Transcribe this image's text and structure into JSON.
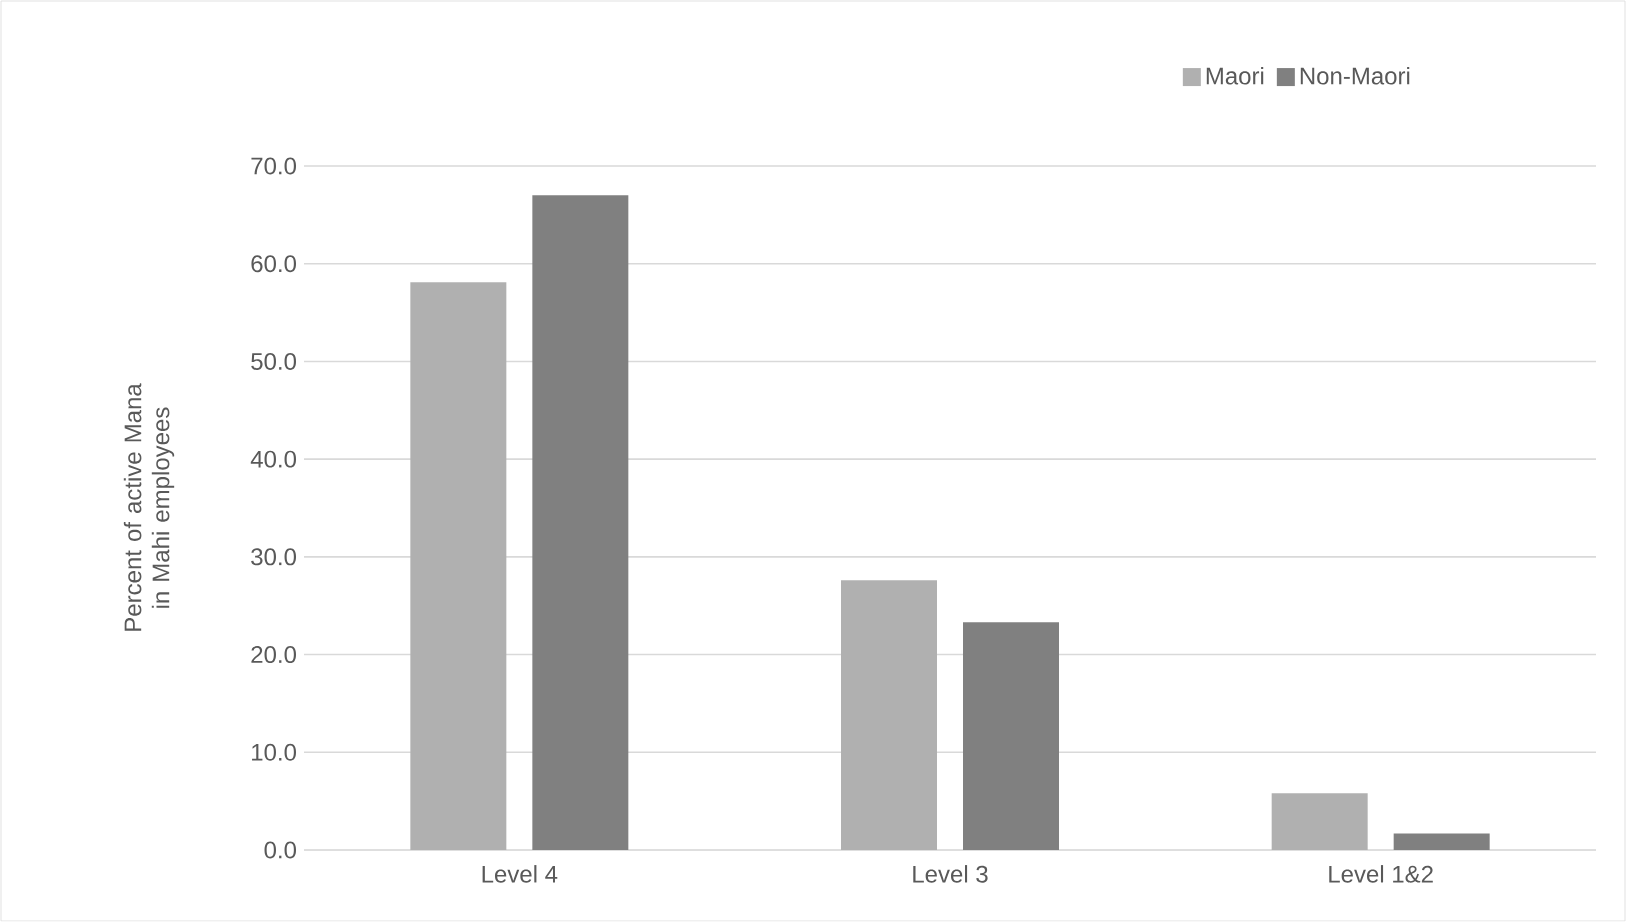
{
  "chart_data": {
    "type": "bar",
    "ylabel": "Percent of active Mana in Mahi employees",
    "categories": [
      "Level 4",
      "Level 3",
      "Level 1&2"
    ],
    "series": [
      {
        "name": "Maori",
        "color": "#b0b0b0",
        "values": [
          58.1,
          27.6,
          5.8
        ]
      },
      {
        "name": "Non-Maori",
        "color": "#808080",
        "values": [
          67.0,
          23.3,
          1.7
        ]
      }
    ],
    "ylim": [
      0,
      70
    ],
    "yticks": [
      {
        "value": 0,
        "label": "0.0"
      },
      {
        "value": 10,
        "label": "10.0"
      },
      {
        "value": 20,
        "label": "20.0"
      },
      {
        "value": 30,
        "label": "30.0"
      },
      {
        "value": 40,
        "label": "40.0"
      },
      {
        "value": 50,
        "label": "50.0"
      },
      {
        "value": 60,
        "label": "60.0"
      },
      {
        "value": 70,
        "label": "70.0"
      }
    ],
    "grid": "y",
    "legend": "top right"
  }
}
